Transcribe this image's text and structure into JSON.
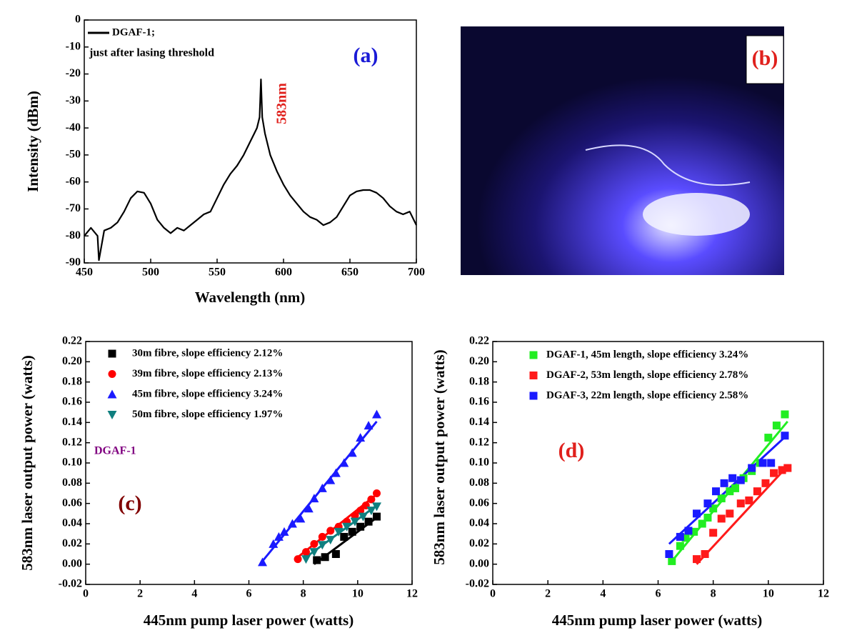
{
  "chart_data": [
    {
      "type": "line",
      "xlabel": "Wavelength (nm)",
      "ylabel": "Intensity (dBm)",
      "xlim": [
        450,
        700
      ],
      "ylim": [
        -90,
        0
      ],
      "xticks": [
        450,
        500,
        550,
        600,
        650,
        700
      ],
      "yticks": [
        0,
        -10,
        -20,
        -30,
        -40,
        -50,
        -60,
        -70,
        -80,
        -90
      ],
      "series": [
        {
          "name": "DGAF-1;",
          "color": "#000000",
          "x": [
            450,
            455,
            460,
            461,
            465,
            470,
            475,
            480,
            485,
            490,
            495,
            500,
            505,
            510,
            515,
            520,
            525,
            530,
            535,
            540,
            545,
            550,
            555,
            560,
            565,
            570,
            575,
            578,
            580,
            582,
            583,
            584,
            586,
            590,
            595,
            600,
            605,
            610,
            615,
            620,
            625,
            630,
            635,
            640,
            645,
            650,
            655,
            660,
            665,
            670,
            675,
            680,
            685,
            690,
            695,
            700
          ],
          "values": [
            -80,
            -77,
            -80,
            -89,
            -78,
            -77,
            -75,
            -71,
            -66,
            -63.5,
            -64,
            -68,
            -74,
            -77,
            -79,
            -77,
            -78,
            -76,
            -74,
            -72,
            -71,
            -66,
            -61,
            -57,
            -54,
            -50,
            -45,
            -42,
            -40,
            -36,
            -22,
            -36,
            -42,
            -50,
            -56,
            -61,
            -65,
            -68,
            -71,
            -73,
            -74,
            -76,
            -75,
            -73,
            -69,
            -65,
            -63.5,
            -63,
            -63,
            -64,
            -66,
            -69,
            -71,
            -72,
            -71,
            -76
          ]
        }
      ],
      "annotations": [
        {
          "text": "just after lasing threshold",
          "color": "#000000"
        },
        {
          "text": "(a)",
          "color": "#1a1ad6"
        },
        {
          "text": "583nm",
          "color": "#e0201c"
        }
      ]
    },
    {
      "type": "scatter",
      "xlabel": "445nm pump laser power (watts)",
      "ylabel": "583nm laser output power (watts)",
      "xlim": [
        0,
        12
      ],
      "ylim": [
        -0.02,
        0.22
      ],
      "xticks": [
        0,
        2,
        4,
        6,
        8,
        10,
        12
      ],
      "yticks": [
        {
          "value": -0.02,
          "label": "-0.02"
        },
        {
          "value": 0,
          "label": "0.00"
        },
        {
          "value": 0.02,
          "label": "0.02"
        },
        {
          "value": 0.04,
          "label": "0.04"
        },
        {
          "value": 0.06,
          "label": "0.06"
        },
        {
          "value": 0.08,
          "label": "0.08"
        },
        {
          "value": 0.1,
          "label": "0.10"
        },
        {
          "value": 0.12,
          "label": "0.12"
        },
        {
          "value": 0.14,
          "label": "0.14"
        },
        {
          "value": 0.16,
          "label": "0.16"
        },
        {
          "value": 0.18,
          "label": "0.18"
        },
        {
          "value": 0.2,
          "label": "0.20"
        },
        {
          "value": 0.22,
          "label": "0.22"
        }
      ],
      "series": [
        {
          "name": "30m fibre, slope efficiency 2.12%",
          "color": "#000000",
          "marker": "square",
          "x": [
            8.5,
            8.8,
            9.2,
            9.5,
            9.8,
            10.1,
            10.4,
            10.7
          ],
          "values": [
            0.004,
            0.007,
            0.01,
            0.027,
            0.032,
            0.037,
            0.042,
            0.047
          ]
        },
        {
          "name": "39m fibre, slope efficiency 2.13%",
          "color": "#ff0000",
          "marker": "circle",
          "x": [
            7.8,
            8.1,
            8.4,
            8.7,
            9.0,
            9.3,
            9.6,
            9.9,
            10.1,
            10.3,
            10.5,
            10.7
          ],
          "values": [
            0.005,
            0.012,
            0.02,
            0.027,
            0.033,
            0.037,
            0.042,
            0.048,
            0.053,
            0.058,
            0.064,
            0.07
          ]
        },
        {
          "name": "45m fibre, slope efficiency 3.24%",
          "color": "#1a1aff",
          "marker": "triangle",
          "x": [
            6.5,
            6.9,
            7.1,
            7.3,
            7.6,
            7.9,
            8.2,
            8.4,
            8.7,
            9.0,
            9.2,
            9.5,
            9.8,
            10.1,
            10.4,
            10.7
          ],
          "values": [
            0.002,
            0.02,
            0.027,
            0.032,
            0.04,
            0.045,
            0.055,
            0.065,
            0.075,
            0.083,
            0.09,
            0.1,
            0.11,
            0.125,
            0.137,
            0.148
          ]
        },
        {
          "name": "50m fibre, slope efficiency 1.97%",
          "color": "#0f7f7f",
          "marker": "triangle-down",
          "x": [
            8.1,
            8.4,
            8.7,
            9.0,
            9.3,
            9.6,
            9.9,
            10.2,
            10.5,
            10.7
          ],
          "values": [
            0.005,
            0.012,
            0.019,
            0.024,
            0.032,
            0.037,
            0.042,
            0.047,
            0.053,
            0.057
          ]
        }
      ],
      "fits": [
        {
          "color": "#000000",
          "x": [
            8.4,
            10.7
          ],
          "values": [
            0.0,
            0.046
          ]
        },
        {
          "color": "#ff0000",
          "x": [
            7.8,
            10.7
          ],
          "values": [
            0.007,
            0.069
          ]
        },
        {
          "color": "#1a1aff",
          "x": [
            6.5,
            10.7
          ],
          "values": [
            0.003,
            0.141
          ]
        },
        {
          "color": "#0f7f7f",
          "x": [
            8.1,
            10.7
          ],
          "values": [
            0.007,
            0.058
          ]
        }
      ],
      "annotations": [
        {
          "text": "DGAF-1",
          "color": "#800080"
        },
        {
          "text": "(c)",
          "color": "#800000"
        }
      ]
    },
    {
      "type": "scatter",
      "xlabel": "445nm pump laser power (watts)",
      "ylabel": "583nm laser output power (watts)",
      "xlim": [
        0,
        12
      ],
      "ylim": [
        -0.02,
        0.22
      ],
      "xticks": [
        0,
        2,
        4,
        6,
        8,
        10,
        12
      ],
      "yticks": [
        {
          "value": -0.02,
          "label": "-0.02"
        },
        {
          "value": 0,
          "label": "0.00"
        },
        {
          "value": 0.02,
          "label": "0.02"
        },
        {
          "value": 0.04,
          "label": "0.04"
        },
        {
          "value": 0.06,
          "label": "0.06"
        },
        {
          "value": 0.08,
          "label": "0.08"
        },
        {
          "value": 0.1,
          "label": "0.10"
        },
        {
          "value": 0.12,
          "label": "0.12"
        },
        {
          "value": 0.14,
          "label": "0.14"
        },
        {
          "value": 0.16,
          "label": "0.16"
        },
        {
          "value": 0.18,
          "label": "0.18"
        },
        {
          "value": 0.2,
          "label": "0.20"
        },
        {
          "value": 0.22,
          "label": "0.22"
        }
      ],
      "series": [
        {
          "name": "DGAF-1, 45m length, slope efficiency 3.24%",
          "color": "#22ee22",
          "marker": "square",
          "x": [
            6.5,
            6.8,
            7.0,
            7.3,
            7.6,
            7.8,
            8.0,
            8.3,
            8.6,
            8.8,
            9.1,
            9.4,
            9.7,
            10.0,
            10.3,
            10.6
          ],
          "values": [
            0.003,
            0.018,
            0.026,
            0.032,
            0.04,
            0.046,
            0.055,
            0.065,
            0.072,
            0.075,
            0.085,
            0.092,
            0.1,
            0.125,
            0.137,
            0.148
          ]
        },
        {
          "name": "DGAF-2, 53m length, slope efficiency 2.78%",
          "color": "#ff1a1a",
          "marker": "square",
          "x": [
            7.4,
            7.7,
            8.0,
            8.3,
            8.6,
            9.0,
            9.3,
            9.6,
            9.9,
            10.2,
            10.5,
            10.7
          ],
          "values": [
            0.005,
            0.01,
            0.031,
            0.045,
            0.05,
            0.06,
            0.063,
            0.072,
            0.08,
            0.09,
            0.093,
            0.095
          ]
        },
        {
          "name": "DGAF-3, 22m length, slope efficiency 2.58%",
          "color": "#1a1aff",
          "marker": "square",
          "x": [
            6.4,
            6.8,
            7.1,
            7.4,
            7.8,
            8.1,
            8.4,
            8.7,
            9.0,
            9.4,
            9.8,
            10.1,
            10.6
          ],
          "values": [
            0.01,
            0.027,
            0.033,
            0.05,
            0.06,
            0.072,
            0.08,
            0.085,
            0.083,
            0.095,
            0.1,
            0.1,
            0.127
          ]
        }
      ],
      "fits": [
        {
          "color": "#22ee22",
          "x": [
            6.5,
            10.7
          ],
          "values": [
            0.003,
            0.141
          ]
        },
        {
          "color": "#ff1a1a",
          "x": [
            7.4,
            10.7
          ],
          "values": [
            0.0,
            0.097
          ]
        },
        {
          "color": "#1a1aff",
          "x": [
            6.4,
            10.7
          ],
          "values": [
            0.02,
            0.128
          ]
        }
      ],
      "annotations": [
        {
          "text": "(d)",
          "color": "#e0201c"
        }
      ]
    }
  ],
  "photo": {
    "label": "(b)"
  }
}
